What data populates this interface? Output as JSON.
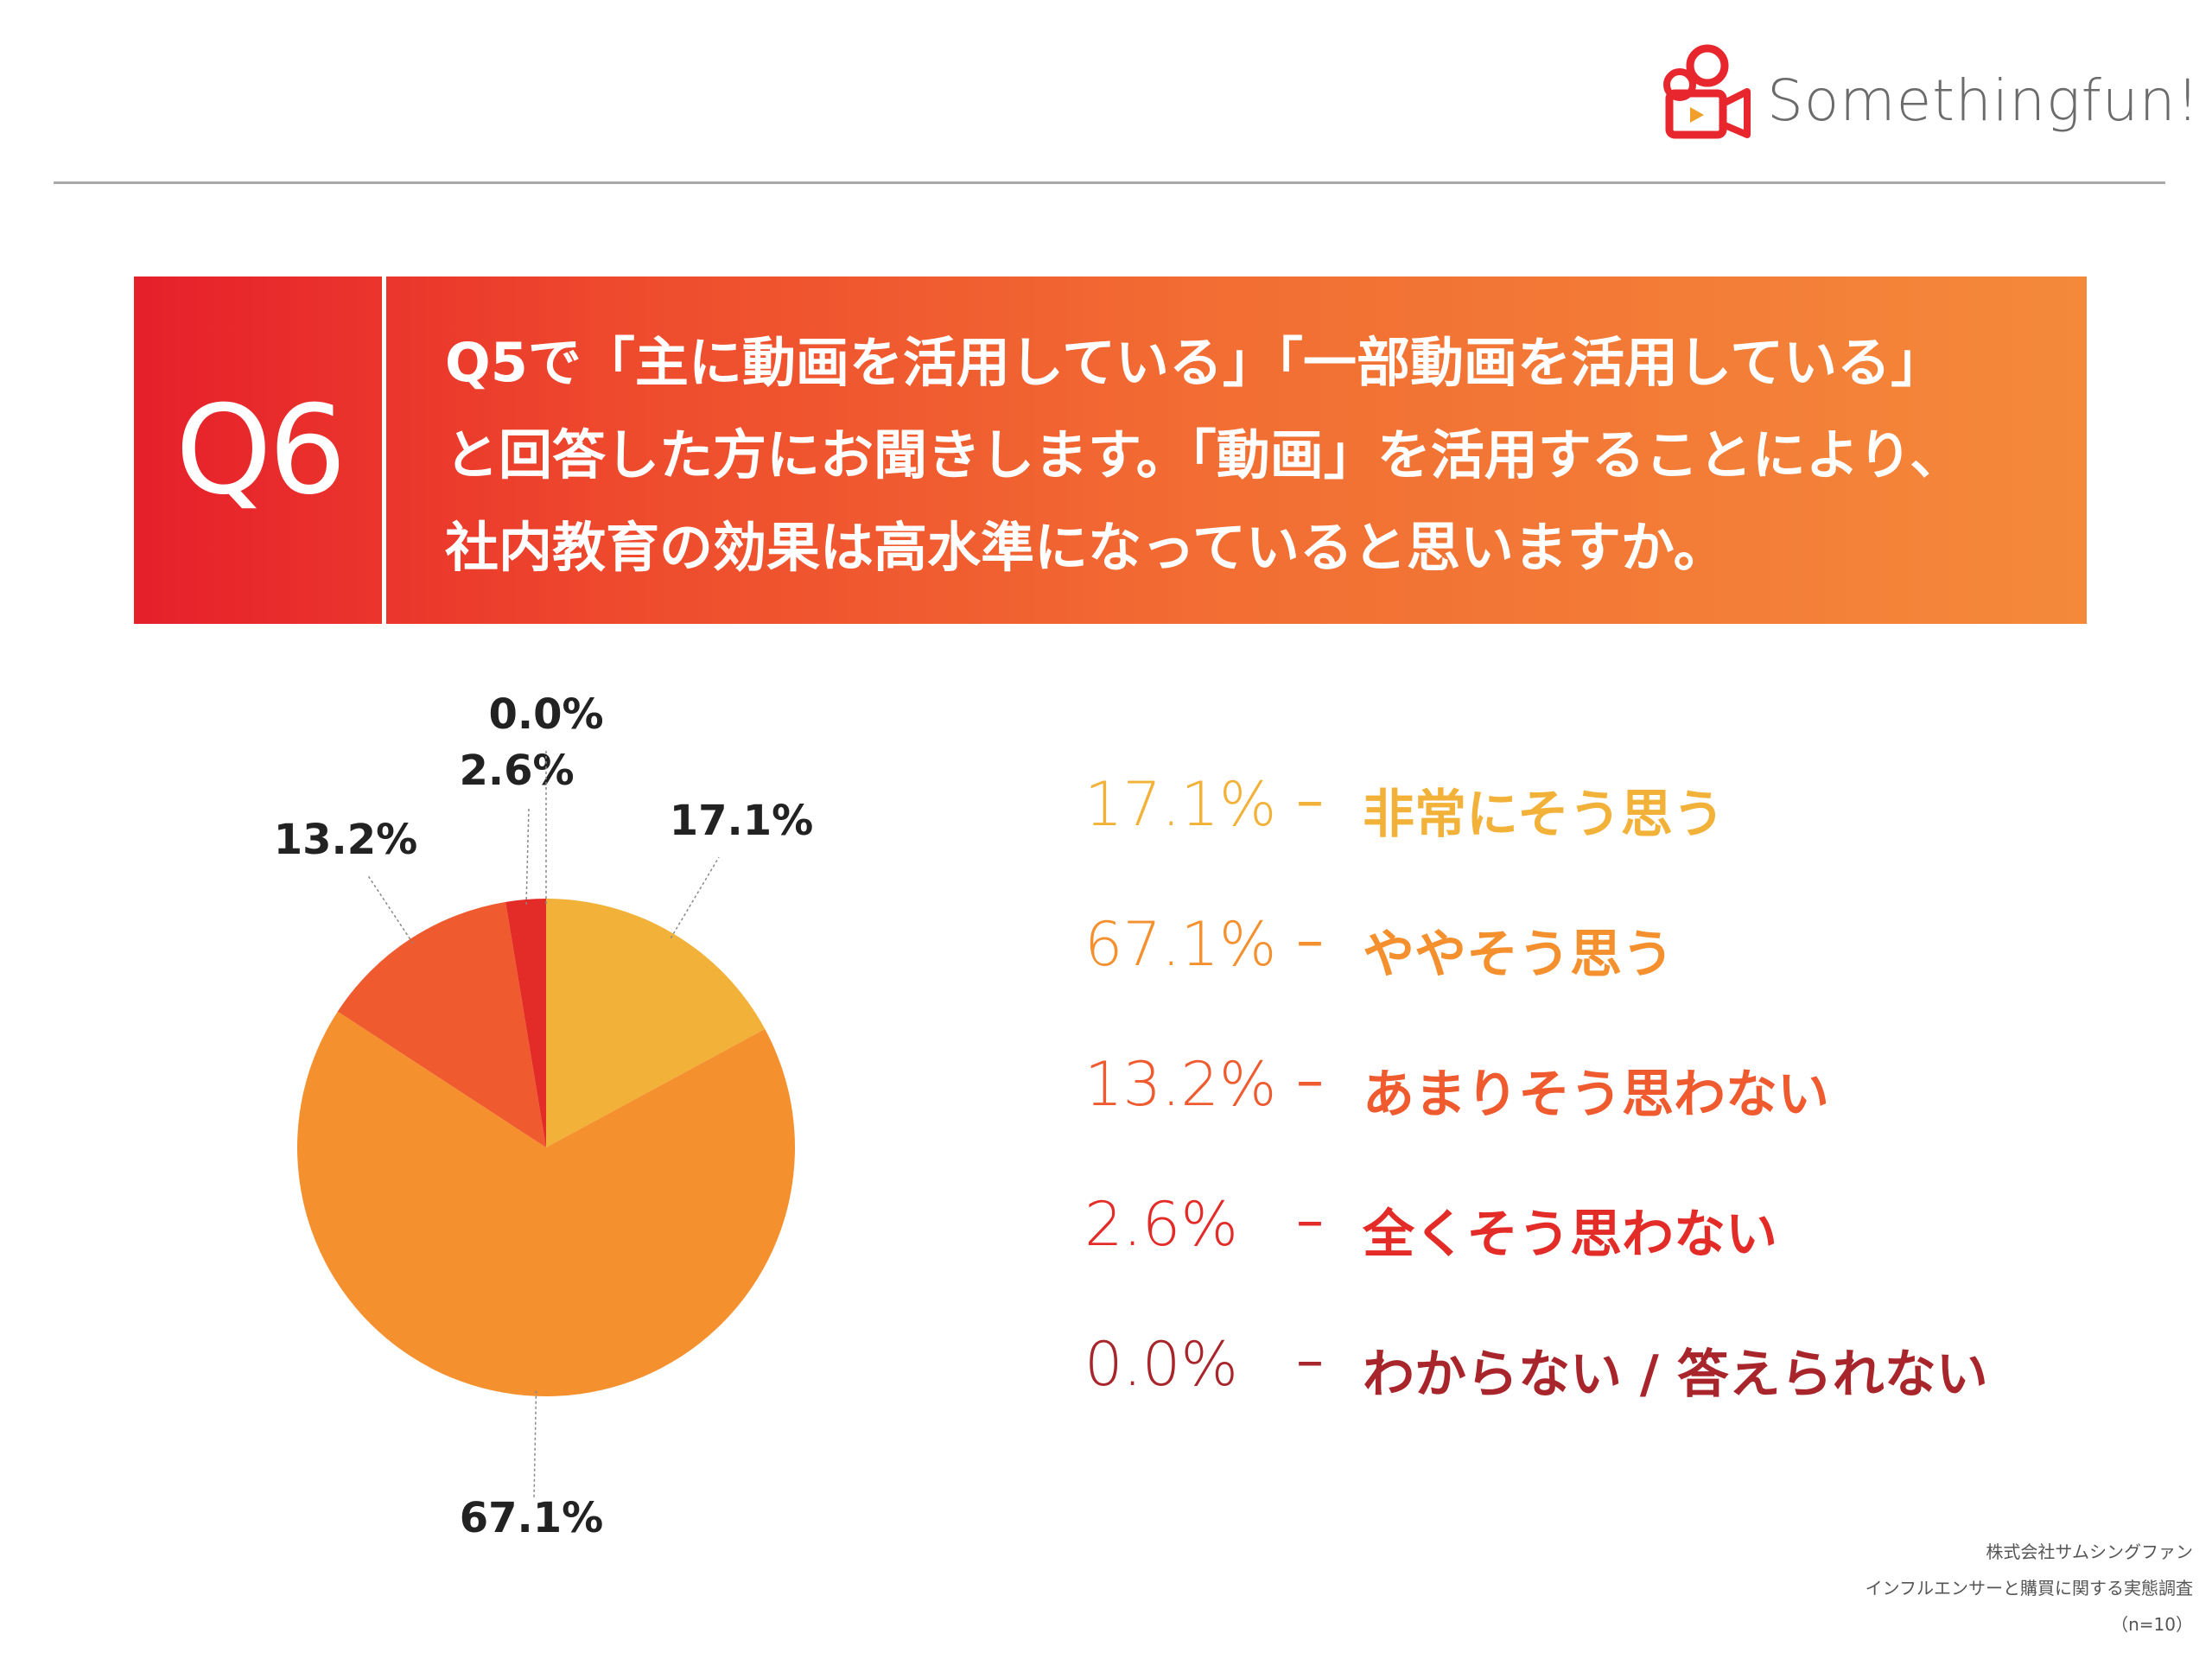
{
  "logo": {
    "text": "Somethingfun!"
  },
  "question": {
    "number": "Q6",
    "lines": [
      "Q5で「主に動画を活用している」「一部動画を活用している」",
      "と回答した方にお聞きします。「動画」を活用することにより、",
      "社内教育の効果は高水準になっていると思いますか。"
    ]
  },
  "chart_data": {
    "type": "pie",
    "categories": [
      "非常にそう思う",
      "ややそう思う",
      "あまりそう思わない",
      "全くそう思わない",
      "わからない / 答えられない"
    ],
    "values": [
      17.1,
      67.1,
      13.2,
      2.6,
      0.0
    ],
    "labels": [
      "17.1%",
      "67.1%",
      "13.2%",
      "2.6%",
      "0.0%"
    ],
    "colors": [
      "#f2b138",
      "#f5902f",
      "#ef5a2f",
      "#e32b27",
      "#a8262b"
    ],
    "legend_position": "right"
  },
  "legend": [
    {
      "pct": "17.1%",
      "dash": "–",
      "label": "非常にそう思う",
      "color": "#f2b138"
    },
    {
      "pct": "67.1%",
      "dash": "–",
      "label": "ややそう思う",
      "color": "#f5902f"
    },
    {
      "pct": "13.2%",
      "dash": "–",
      "label": "あまりそう思わない",
      "color": "#ef5a2f"
    },
    {
      "pct": "2.6%",
      "dash": "–",
      "label": "全くそう思わない",
      "color": "#e32b27"
    },
    {
      "pct": "0.0%",
      "dash": "–",
      "label": "わからない / 答えられない",
      "color": "#a8262b"
    }
  ],
  "footer": {
    "company": "株式会社サムシングファン",
    "survey": "インフルエンサーと購買に関する実態調査",
    "sample": "（n=10）"
  }
}
